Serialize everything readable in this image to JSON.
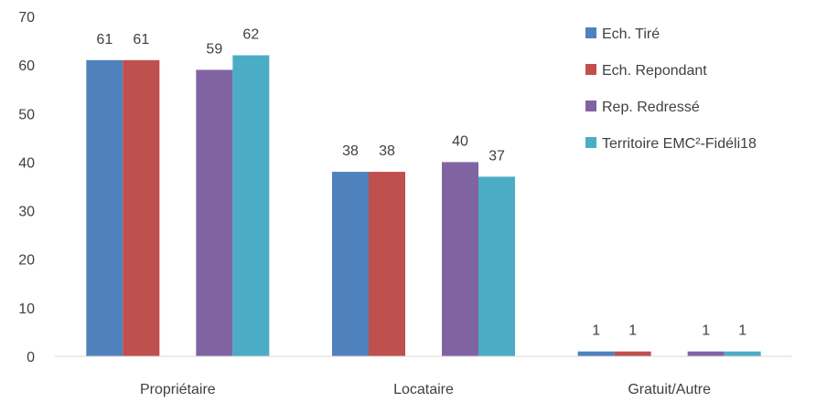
{
  "chart_data": {
    "type": "bar",
    "categories": [
      "Propriétaire",
      "Locataire",
      "Gratuit/Autre"
    ],
    "series": [
      {
        "name": "Ech. Tiré",
        "values": [
          61,
          38,
          1
        ],
        "labels": [
          "61",
          "38",
          "1"
        ],
        "color": "#4F81BD"
      },
      {
        "name": "Ech. Repondant",
        "values": [
          61,
          38,
          1
        ],
        "labels": [
          "61",
          "38",
          "1"
        ],
        "color": "#C0504D"
      },
      {
        "name": "Rep. Redressé",
        "values": [
          59,
          40,
          1
        ],
        "labels": [
          "59",
          "40",
          "1"
        ],
        "color": "#8064A2"
      },
      {
        "name": "Territoire EMC²-Fidéli18",
        "values": [
          62,
          37,
          1
        ],
        "labels": [
          "62",
          "37",
          "1"
        ],
        "color": "#4BACC6"
      }
    ],
    "title": "",
    "xlabel": "",
    "ylabel": "",
    "ylim": [
      0,
      70
    ],
    "yticks": [
      "0",
      "10",
      "20",
      "30",
      "40",
      "50",
      "60",
      "70"
    ],
    "grid": false,
    "legend_position": "right"
  }
}
